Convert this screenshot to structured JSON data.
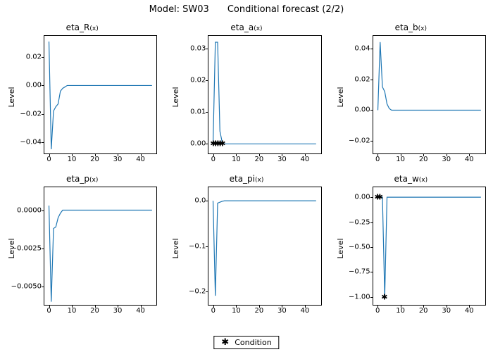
{
  "suptitle": "Model: SW03  Conditional forecast  (2/2)",
  "legend_label": "Condition",
  "layout": {
    "rows": 2,
    "cols": 3
  },
  "colors": {
    "line": "#1f77b4",
    "marker": "#000000",
    "axis": "#000000",
    "text": "#000000",
    "background": "#ffffff"
  },
  "line_width": 1.2,
  "xlim": [
    -2,
    47
  ],
  "xticks": [
    0,
    10,
    20,
    30,
    40
  ],
  "panels": [
    {
      "title_main": "eta_R",
      "title_sub": "(x)",
      "ylabel": "Level",
      "ylim": [
        -0.048,
        0.035
      ],
      "yticks": [
        -0.04,
        -0.02,
        0.0,
        0.02
      ],
      "ytick_labels": [
        "−0.04",
        "−0.02",
        "0.00",
        "0.02"
      ],
      "series": {
        "x": [
          0,
          1,
          2,
          3,
          4,
          5,
          6,
          7,
          8,
          9,
          10,
          11,
          12,
          45
        ],
        "y": [
          0.031,
          -0.045,
          -0.018,
          -0.015,
          -0.013,
          -0.004,
          -0.002,
          -0.001,
          0,
          0,
          0,
          0,
          0,
          0
        ]
      },
      "markers": null
    },
    {
      "title_main": "eta_a",
      "title_sub": "(x)",
      "ylabel": "Level",
      "ylim": [
        -0.003,
        0.034
      ],
      "yticks": [
        0.0,
        0.01,
        0.02,
        0.03
      ],
      "ytick_labels": [
        "0.00",
        "0.01",
        "0.02",
        "0.03"
      ],
      "series": {
        "x": [
          0,
          1,
          2,
          3,
          4,
          5,
          6,
          7,
          8,
          9,
          10,
          45
        ],
        "y": [
          0,
          0.032,
          0.032,
          0.004,
          0.0005,
          0,
          0,
          0,
          0,
          0,
          0,
          0
        ]
      },
      "markers": [
        {
          "x": 0,
          "y": 0
        },
        {
          "x": 1,
          "y": 0
        },
        {
          "x": 2,
          "y": 0
        },
        {
          "x": 3,
          "y": 0
        },
        {
          "x": 4,
          "y": 0
        }
      ]
    },
    {
      "title_main": "eta_b",
      "title_sub": "(x)",
      "ylabel": "Level",
      "ylim": [
        -0.028,
        0.048
      ],
      "yticks": [
        -0.02,
        0.0,
        0.02,
        0.04
      ],
      "ytick_labels": [
        "−0.02",
        "0.00",
        "0.02",
        "0.04"
      ],
      "series": {
        "x": [
          0,
          1,
          2,
          3,
          4,
          5,
          6,
          7,
          8,
          9,
          10,
          45
        ],
        "y": [
          0,
          0.044,
          0.015,
          0.012,
          0.004,
          0.001,
          0,
          0,
          0,
          0,
          0,
          0
        ]
      },
      "markers": null
    },
    {
      "title_main": "eta_p",
      "title_sub": "(x)",
      "ylabel": "Level",
      "ylim": [
        -0.0062,
        0.0015
      ],
      "yticks": [
        -0.005,
        -0.0025,
        0.0
      ],
      "ytick_labels": [
        "−0.0050",
        "−0.0025",
        "0.0000"
      ],
      "series": {
        "x": [
          0,
          1,
          2,
          3,
          4,
          5,
          6,
          7,
          8,
          9,
          10,
          45
        ],
        "y": [
          0.0003,
          -0.006,
          -0.0012,
          -0.0011,
          -0.0005,
          -0.0002,
          0,
          0,
          0,
          0,
          0,
          0
        ]
      },
      "markers": null
    },
    {
      "title_main": "eta_pi",
      "title_sub": "(x)",
      "ylabel": "Level",
      "ylim": [
        -0.23,
        0.03
      ],
      "yticks": [
        -0.2,
        -0.1,
        0.0
      ],
      "ytick_labels": [
        "−0.2",
        "−0.1",
        "0.0"
      ],
      "series": {
        "x": [
          0,
          1,
          2,
          3,
          4,
          5,
          6,
          7,
          8,
          9,
          10,
          45
        ],
        "y": [
          0,
          -0.21,
          -0.005,
          -0.003,
          -0.001,
          0,
          0,
          0,
          0,
          0,
          0,
          0
        ]
      },
      "markers": null
    },
    {
      "title_main": "eta_w",
      "title_sub": "(x)",
      "ylabel": "Level",
      "ylim": [
        -1.08,
        0.1
      ],
      "yticks": [
        -1.0,
        -0.75,
        -0.5,
        -0.25,
        0.0
      ],
      "ytick_labels": [
        "−1.00",
        "−0.75",
        "−0.50",
        "−0.25",
        "0.00"
      ],
      "series": {
        "x": [
          0,
          1,
          2,
          3,
          4,
          5,
          6,
          7,
          8,
          9,
          10,
          45
        ],
        "y": [
          0,
          0,
          0,
          -1.0,
          0,
          0,
          0,
          0,
          0,
          0,
          0,
          0
        ]
      },
      "markers": [
        {
          "x": 0,
          "y": 0
        },
        {
          "x": 1,
          "y": 0
        },
        {
          "x": 3,
          "y": -1.0
        }
      ]
    }
  ]
}
